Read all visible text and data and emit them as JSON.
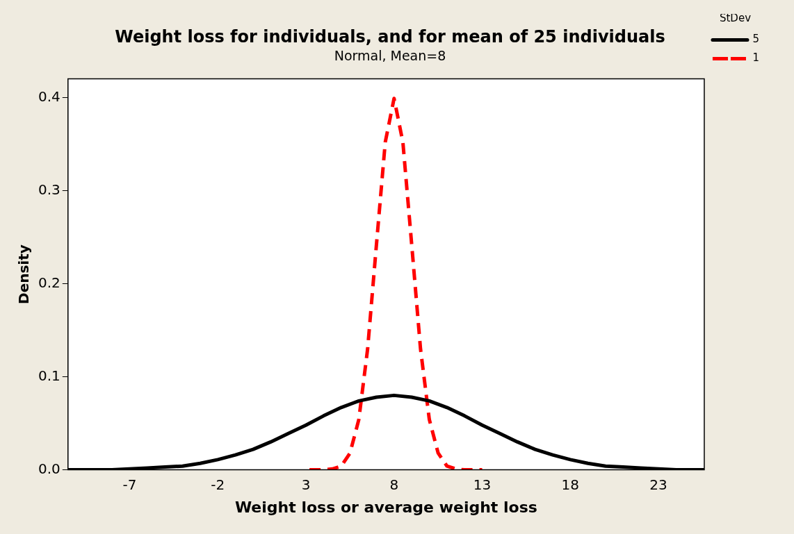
{
  "chart_data": {
    "type": "line",
    "title": "Weight loss for individuals, and for mean of 25 individuals",
    "subtitle": "Normal, Mean=8",
    "xlabel": "Weight loss or average weight loss",
    "ylabel": "Density",
    "legend_title": "StDev",
    "series": [
      {
        "name": "5",
        "color": "#000000",
        "line_style": "solid",
        "x": [
          -10.5,
          -10,
          -9,
          -8,
          -7,
          -6,
          -5,
          -4,
          -3,
          -2,
          -1,
          0,
          1,
          2,
          3,
          4,
          5,
          6,
          7,
          8,
          9,
          10,
          11,
          12,
          13,
          14,
          15,
          16,
          17,
          18,
          19,
          20,
          21,
          22,
          23,
          24,
          25,
          25.6
        ],
        "values": [
          0.0,
          0.0,
          0.0,
          0.0,
          0.001,
          0.002,
          0.003,
          0.004,
          0.007,
          0.011,
          0.016,
          0.022,
          0.03,
          0.039,
          0.048,
          0.058,
          0.067,
          0.074,
          0.078,
          0.08,
          0.078,
          0.074,
          0.067,
          0.058,
          0.048,
          0.039,
          0.03,
          0.022,
          0.016,
          0.011,
          0.007,
          0.004,
          0.003,
          0.002,
          0.001,
          0.0,
          0.0,
          0.0
        ]
      },
      {
        "name": "1",
        "color": "#ff0000",
        "line_style": "dashed",
        "x": [
          3.2,
          3.5,
          4,
          4.5,
          5,
          5.5,
          6,
          6.5,
          7,
          7.5,
          8,
          8.5,
          9,
          9.5,
          10,
          10.5,
          11,
          11.5,
          12,
          12.5,
          13
        ],
        "values": [
          0.0,
          0.0,
          0.0,
          0.001,
          0.004,
          0.018,
          0.054,
          0.13,
          0.242,
          0.352,
          0.399,
          0.352,
          0.242,
          0.13,
          0.054,
          0.018,
          0.004,
          0.001,
          0.0,
          0.0,
          0.0
        ]
      }
    ],
    "xlim": [
      -10.5,
      25.6
    ],
    "xticks": [
      -7,
      -2,
      3,
      8,
      13,
      18,
      23
    ],
    "ylim": [
      0,
      0.42
    ],
    "yticks": [
      {
        "value": 0,
        "label": "0.0"
      },
      0.1,
      0.2,
      0.3,
      0.4
    ],
    "grid": false,
    "legend": "top right",
    "marker": "none"
  }
}
